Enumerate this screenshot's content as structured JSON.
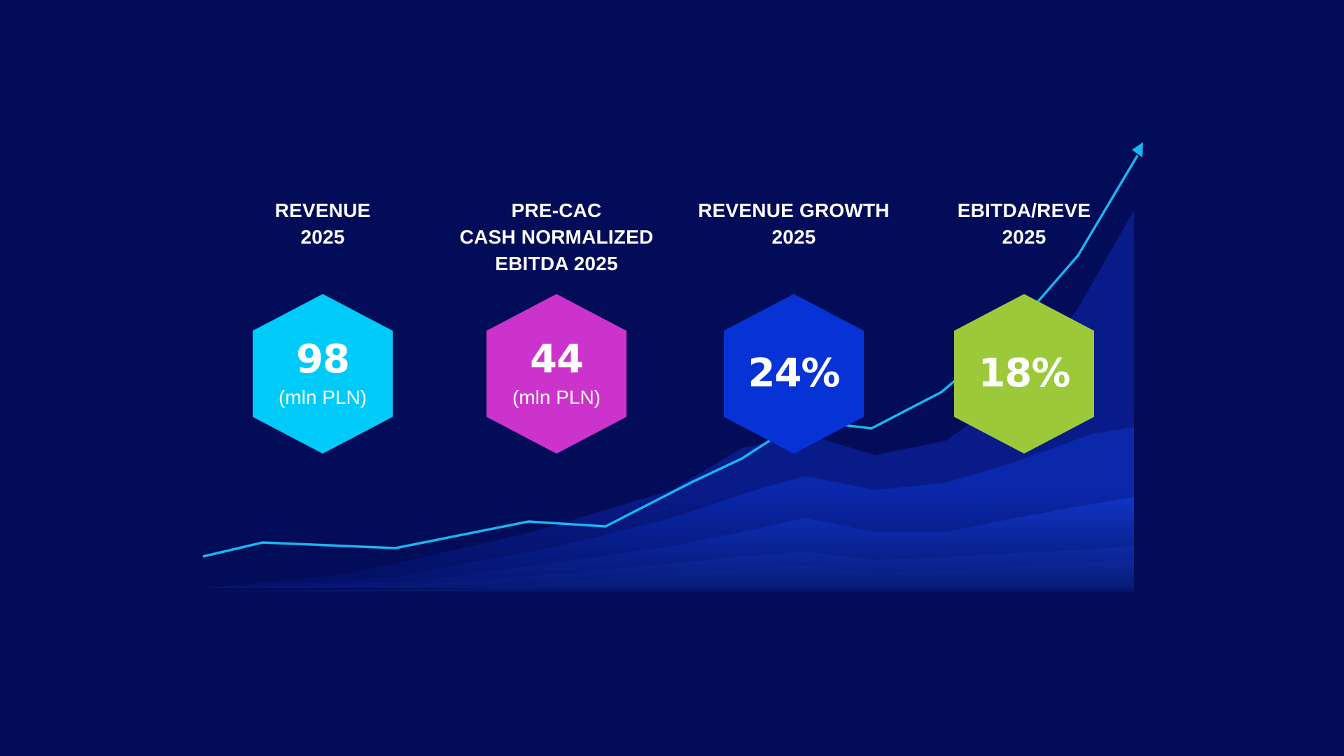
{
  "colors": {
    "background": "#020c58",
    "line": "#1ab6f0",
    "area_dark": "#0a23a8",
    "area_mid": "#0f36d0",
    "area_light": "#1a4ff0"
  },
  "kpis": [
    {
      "label_lines": [
        "REVENUE",
        "2025"
      ],
      "value": "98",
      "unit": "(mln PLN)",
      "color": "#00cbf8"
    },
    {
      "label_lines": [
        "PRE-CAC",
        "CASH NORMALIZED",
        "EBITDA 2025"
      ],
      "value": "44",
      "unit": "(mln PLN)",
      "color": "#cc33cc"
    },
    {
      "label_lines": [
        "REVENUE GROWTH",
        "2025"
      ],
      "value": "24%",
      "unit": "",
      "color": "#0733d6"
    },
    {
      "label_lines": [
        "EBITDA/REVE",
        "2025"
      ],
      "value": "18%",
      "unit": "",
      "color": "#9bc93a"
    }
  ],
  "decor": {
    "trend_line": "arrow-up-trend-icon"
  }
}
